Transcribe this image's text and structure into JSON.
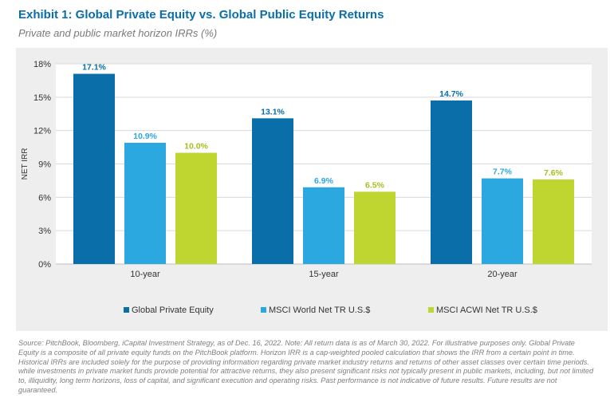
{
  "title": "Exhibit 1: Global Private Equity vs. Global Public Equity Returns",
  "subtitle": "Private and public market horizon IRRs (%)",
  "source_note": "Source: PitchBook, Bloomberg, iCapital Investment Strategy, as of Dec. 16, 2022. Note: All  return data is as of March 30, 2022. For illustrative purposes only. Global Private Equity is a composite of all private equity funds on the PitchBook platform. Horizon IRR is a cap-weighted pooled calculation that shows the IRR from a certain point in time. Historical IRRs are included solely for the purpose of providing information regarding private market industry returns and returns of other asset classes over certain time  periods. while investments in private market funds provide potential for attractive returns, they also present significant risks not typically present in public markets, including, but not limited to, illiquidity, long term horizons, loss of capital, and significant execution and operating risks. Past performance is not indicative of future results. Future results are not guaranteed.",
  "chart_data": {
    "type": "bar",
    "title": "Exhibit 1: Global Private Equity vs. Global Public Equity Returns",
    "subtitle": "Private and public market horizon IRRs (%)",
    "xlabel": "",
    "ylabel": "NET IRR",
    "categories": [
      "10-year",
      "15-year",
      "20-year"
    ],
    "series": [
      {
        "name": "Global Private Equity",
        "color": "#0a6ea8",
        "values": [
          17.1,
          13.1,
          14.7
        ],
        "labels": [
          "17.1%",
          "13.1%",
          "14.7%"
        ]
      },
      {
        "name": "MSCI World Net TR U.S.$",
        "color": "#2ba8e0",
        "values": [
          10.9,
          6.9,
          7.7
        ],
        "labels": [
          "10.9%",
          "6.9%",
          "7.7%"
        ]
      },
      {
        "name": "MSCI ACWI Net TR U.S.$",
        "color": "#bfd530",
        "values": [
          10.0,
          6.5,
          7.6
        ],
        "labels": [
          "10.0%",
          "6.5%",
          "7.6%"
        ]
      }
    ],
    "ylim": [
      0,
      18
    ],
    "yticks": [
      0,
      3,
      6,
      9,
      12,
      15,
      18
    ],
    "ytick_labels": [
      "0%",
      "3%",
      "6%",
      "9%",
      "12%",
      "15%",
      "18%"
    ],
    "grid": true,
    "legend_position": "bottom",
    "label_colors": [
      "#0a6ea8",
      "#2ba8e0",
      "#a9be1c"
    ],
    "gridline_color": "#ffffff",
    "panel_color": "#eeeeee"
  }
}
